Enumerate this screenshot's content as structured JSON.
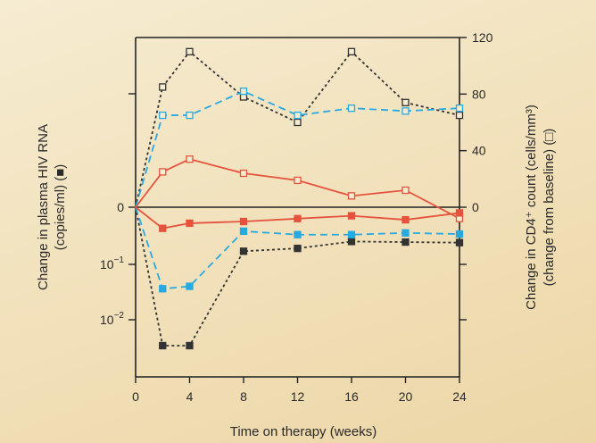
{
  "chart_data": {
    "type": "line",
    "xlabel": "Time on therapy (weeks)",
    "x": [
      0,
      2,
      4,
      8,
      12,
      16,
      20,
      24
    ],
    "xticks": [
      "0",
      "4",
      "8",
      "12",
      "16",
      "20",
      "24"
    ],
    "xlim": [
      0,
      26
    ],
    "ylabel_left_line1": "Change in plasma HIV RNA",
    "ylabel_left_line2": "(copies/ml) (",
    "ylabel_left_marker": "■",
    "ylabel_left_end": ")",
    "ylabel_right_line1": "Change in CD4⁺ count (cells/mm³)",
    "ylabel_right_line2": "(change from baseline) (",
    "ylabel_right_marker": "□",
    "ylabel_right_end": ")",
    "left_ticks": [
      {
        "label": "0",
        "base": "",
        "exp": ""
      },
      {
        "label": "",
        "base": "10",
        "exp": "−1"
      },
      {
        "label": "",
        "base": "10",
        "exp": "−2"
      }
    ],
    "right_axis": {
      "ylim": [
        -120,
        120
      ],
      "ticks": [
        120,
        80,
        40,
        0
      ]
    },
    "series_rna": [
      {
        "color": "#333333",
        "dash": "3,3",
        "marker": "filled-square",
        "values": [
          0,
          -0.2,
          -0.2,
          -0.077,
          -0.072,
          -0.06,
          -0.061,
          -0.062
        ]
      },
      {
        "color": "#27a9e1",
        "dash": "8,5",
        "marker": "filled-square",
        "values": [
          0,
          -0.13,
          -0.127,
          -0.042,
          -0.048,
          -0.048,
          -0.045,
          -0.047
        ]
      },
      {
        "color": "#e5533d",
        "dash": "",
        "marker": "filled-square",
        "values": [
          0,
          -0.037,
          -0.028,
          -0.025,
          -0.02,
          -0.015,
          -0.022,
          -0.01
        ]
      }
    ],
    "series_cd4": [
      {
        "color": "#333333",
        "dash": "3,3",
        "marker": "open-square",
        "values": [
          0,
          85,
          110,
          78,
          60,
          110,
          74,
          65
        ]
      },
      {
        "color": "#27a9e1",
        "dash": "8,5",
        "marker": "open-square",
        "values": [
          0,
          65,
          65,
          82,
          65,
          70,
          68,
          70
        ]
      },
      {
        "color": "#e5533d",
        "dash": "",
        "marker": "open-square",
        "values": [
          0,
          25,
          34,
          24,
          19,
          8,
          12,
          -8
        ]
      }
    ]
  }
}
